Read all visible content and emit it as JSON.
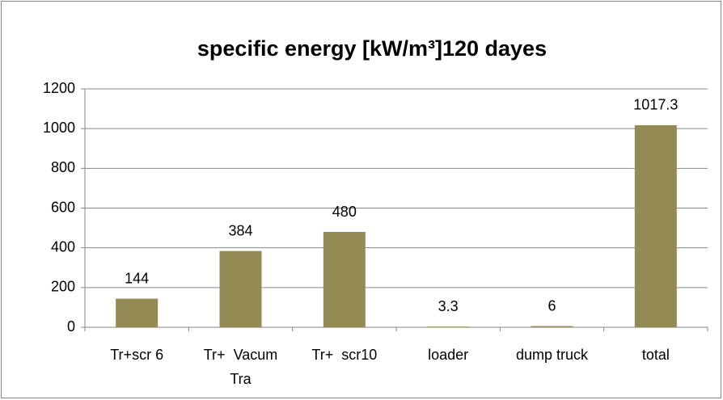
{
  "chart_data": {
    "type": "bar",
    "title": "specific energy [kW/m³]120 dayes",
    "categories": [
      "Tr+scr 6",
      "Tr+  Vacum Tra",
      "Tr+  scr10",
      "loader",
      "dump truck",
      "total"
    ],
    "values": [
      144,
      384,
      480,
      3.3,
      6,
      1017.3
    ],
    "color": "#948a54",
    "ylim": [
      0,
      1200
    ],
    "yticks": [
      0,
      200,
      400,
      600,
      800,
      1000,
      1200
    ],
    "grid": true
  }
}
